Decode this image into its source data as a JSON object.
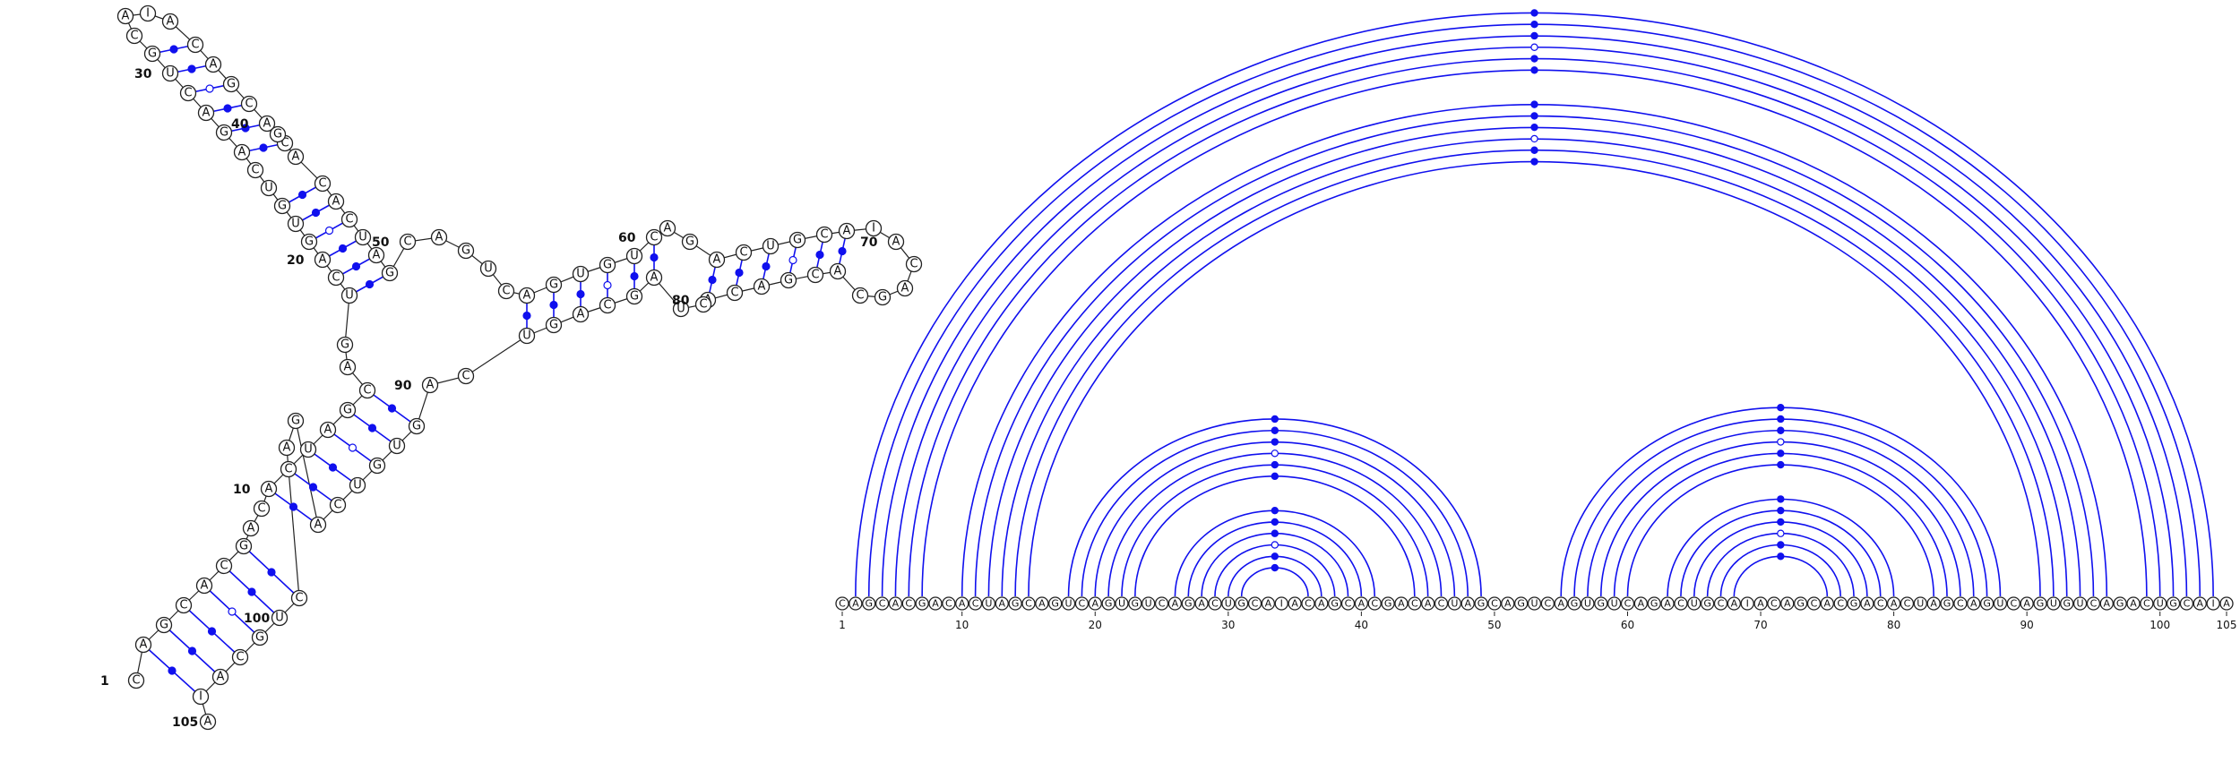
{
  "sequence": "CAGCACGACACUAGCAGUCAGUGUCAGACUGCAIACAGCACGACACUAGCAGUCAGUGUCAGACUGCAIACAGCACGACACUAGCAGUCAGUGUCAGACUGCAIA",
  "length": 105,
  "position_labels": [
    "1",
    "10",
    "20",
    "30",
    "40",
    "50",
    "60",
    "70",
    "80",
    "90",
    "100",
    "105"
  ],
  "arc_tick_labels": [
    "1",
    "10",
    "20",
    "30",
    "40",
    "50",
    "60",
    "70",
    "80",
    "90",
    "100",
    "105"
  ],
  "colors": {
    "pair": "#1010ee",
    "backbone": "#222222"
  },
  "pair_types": {
    "circle_filled": "Watson-Crick / wobble marker",
    "circle_open": "non-canonical marker",
    "double_line": "G-C style pair"
  },
  "base_pairs": [
    [
      2,
      104
    ],
    [
      3,
      103
    ],
    [
      4,
      102
    ],
    [
      5,
      101
    ],
    [
      6,
      100
    ],
    [
      7,
      99
    ],
    [
      10,
      96
    ],
    [
      11,
      95
    ],
    [
      12,
      94
    ],
    [
      13,
      93
    ],
    [
      14,
      92
    ],
    [
      15,
      91
    ],
    [
      18,
      49
    ],
    [
      19,
      48
    ],
    [
      20,
      47
    ],
    [
      21,
      46
    ],
    [
      22,
      45
    ],
    [
      23,
      44
    ],
    [
      26,
      41
    ],
    [
      27,
      40
    ],
    [
      28,
      39
    ],
    [
      29,
      38
    ],
    [
      30,
      37
    ],
    [
      31,
      36
    ],
    [
      55,
      88
    ],
    [
      56,
      87
    ],
    [
      57,
      86
    ],
    [
      58,
      85
    ],
    [
      59,
      84
    ],
    [
      60,
      83
    ],
    [
      63,
      80
    ],
    [
      64,
      79
    ],
    [
      65,
      78
    ],
    [
      66,
      77
    ],
    [
      67,
      76
    ],
    [
      68,
      75
    ]
  ]
}
